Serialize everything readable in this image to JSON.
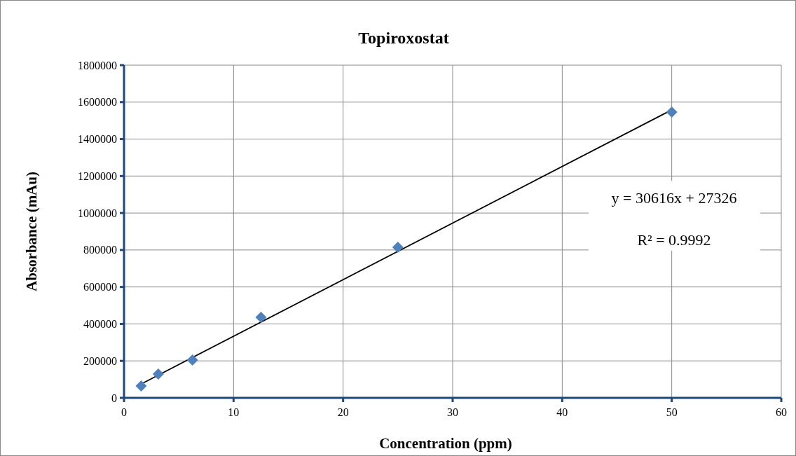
{
  "chart_data": {
    "type": "scatter",
    "title": "Topiroxostat",
    "xlabel": "Concentration (ppm)",
    "ylabel": "Absorbance (mAu)",
    "xlim": [
      0,
      60
    ],
    "xticks": [
      0,
      10,
      20,
      30,
      40,
      50,
      60
    ],
    "ylim": [
      0,
      1800000
    ],
    "yticks": [
      0,
      200000,
      400000,
      600000,
      800000,
      1000000,
      1200000,
      1400000,
      1600000,
      1800000
    ],
    "grid": true,
    "marker": "diamond",
    "x": [
      1.5625,
      3.125,
      6.25,
      12.5,
      25,
      50
    ],
    "series": [
      {
        "color": "#4f81bd",
        "values": [
          64000,
          129000,
          205000,
          436000,
          815000,
          1546000
        ]
      },
      {
        "type": "line",
        "color": "#000000",
        "x": [
          1.5625,
          50
        ],
        "values": [
          75000,
          1558000
        ],
        "marker": "none"
      }
    ],
    "annotations": [
      "y = 30616x + 27326",
      "R² = 0.9992"
    ]
  }
}
